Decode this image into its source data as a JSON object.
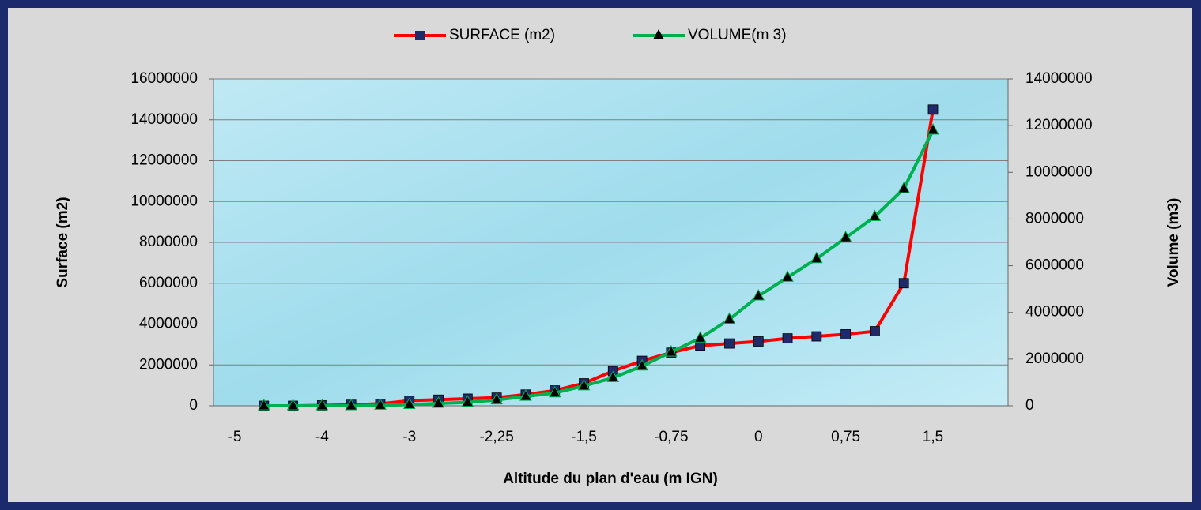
{
  "chart_data": {
    "type": "line",
    "x_label": "Altitude du plan d'eau (m IGN)",
    "y_label": "Surface (m2)",
    "y2_label": "Volume (m3)",
    "categories": [
      "-5",
      null,
      null,
      "-4",
      null,
      null,
      "-3",
      null,
      null,
      "-2,25",
      null,
      null,
      "-1,5",
      null,
      null,
      "-0,75",
      null,
      null,
      "0",
      null,
      null,
      "0,75",
      null,
      null,
      "1,5"
    ],
    "series": [
      {
        "name": "SURFACE (m2)",
        "color": "#ff0000",
        "marker": "square",
        "marker_color": "#1f2a6b",
        "values": [
          null,
          0,
          0,
          20000,
          50000,
          100000,
          250000,
          300000,
          350000,
          400000,
          550000,
          750000,
          1100000,
          1700000,
          2200000,
          2600000,
          2950000,
          3050000,
          3150000,
          3300000,
          3400000,
          3500000,
          3650000,
          6000000,
          14500000
        ]
      },
      {
        "name": "VOLUME(m 3)",
        "color": "#00b050",
        "marker": "triangle",
        "marker_color": "#000000",
        "axis": "y2",
        "values": [
          null,
          0,
          0,
          0,
          0,
          20000,
          50000,
          100000,
          150000,
          250000,
          400000,
          550000,
          850000,
          1200000,
          1700000,
          2300000,
          2900000,
          3700000,
          4700000,
          5500000,
          6300000,
          7200000,
          8100000,
          9300000,
          11800000
        ]
      }
    ],
    "ylim": [
      0,
      16000000
    ],
    "yticks": [
      0,
      2000000,
      4000000,
      6000000,
      8000000,
      10000000,
      12000000,
      14000000,
      16000000
    ],
    "y2lim": [
      0,
      14000000
    ],
    "y2ticks": [
      0,
      2000000,
      4000000,
      6000000,
      8000000,
      10000000,
      12000000,
      14000000
    ],
    "grid": true,
    "legend": "top"
  }
}
